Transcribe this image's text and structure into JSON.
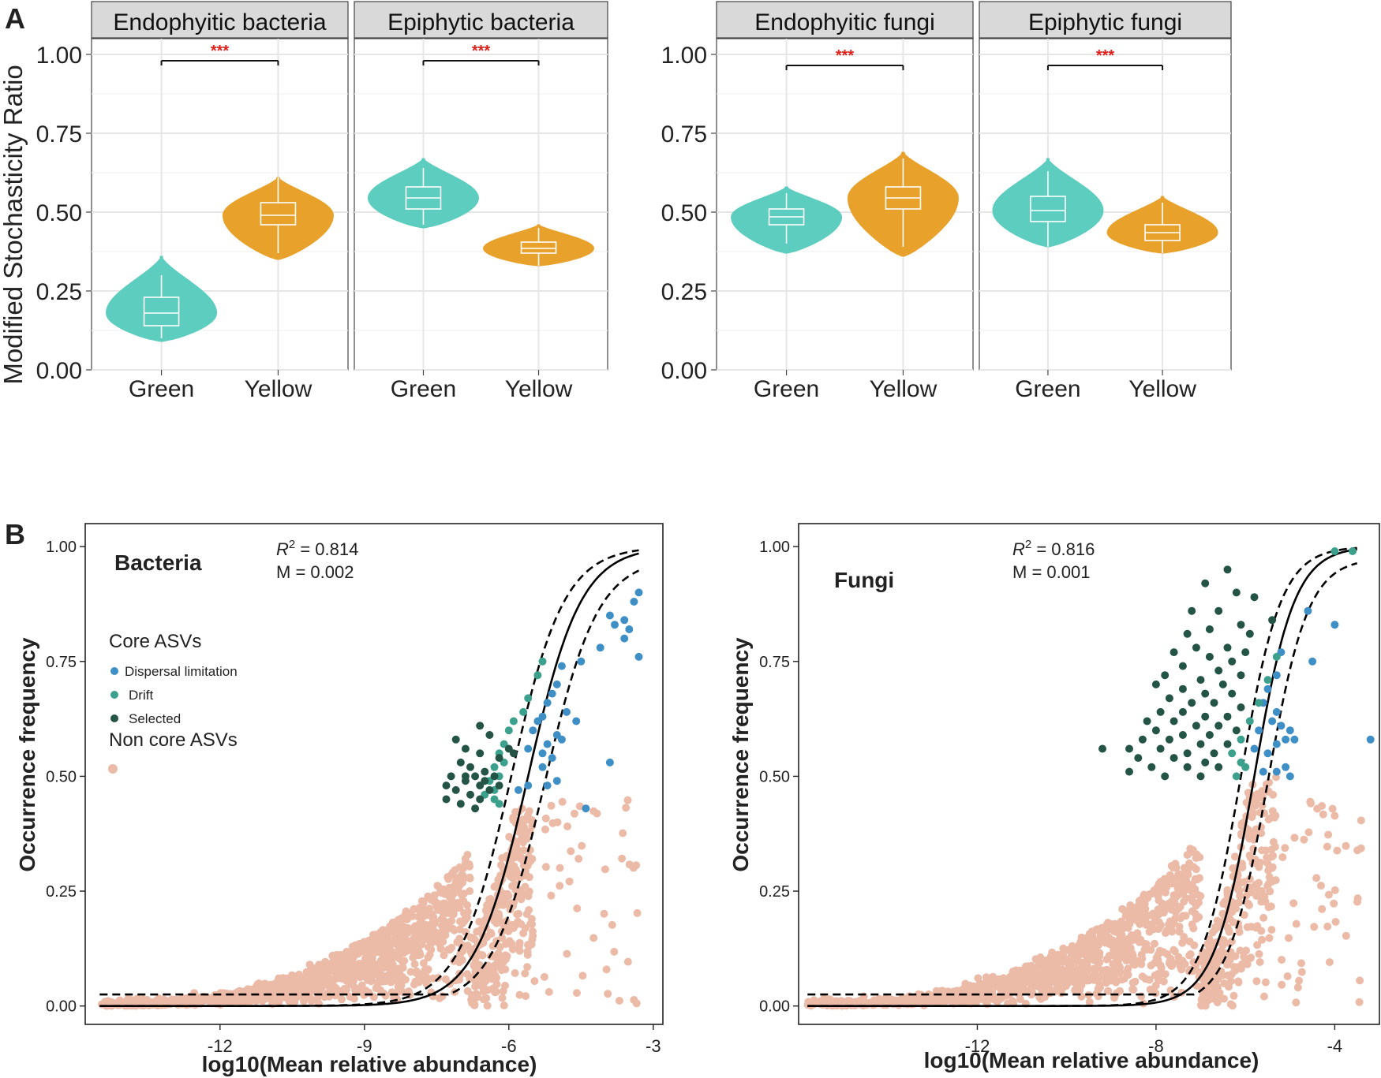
{
  "figure": {
    "panel_a_label": "A",
    "panel_b_label": "B",
    "colors": {
      "green": "#5ccdbe",
      "yellow": "#e8a22c",
      "strip": "#d9d9d9",
      "nonCore": "#ebbba8",
      "dispersal": "#3f8fc7",
      "drift": "#3ba08c",
      "selected": "#245446",
      "sig": "#e0201b"
    }
  },
  "chart_data": [
    {
      "type": "violin",
      "panel": "A",
      "ylabel": "Modified Stochasticity Ratio",
      "ylim": [
        0,
        1.05
      ],
      "yticks": [
        0.0,
        0.25,
        0.5,
        0.75,
        1.0
      ],
      "ytick_labels": [
        "0.00",
        "0.25",
        "0.50",
        "0.75",
        "1.00"
      ],
      "categories": [
        "Green",
        "Yellow"
      ],
      "significance": "***",
      "facets": [
        {
          "title": "Endophyitic bacteria",
          "groups": [
            {
              "category": "Green",
              "min": 0.09,
              "max": 0.36,
              "q1": 0.14,
              "median": 0.18,
              "q3": 0.23,
              "whisker_low": 0.1,
              "whisker_high": 0.3
            },
            {
              "category": "Yellow",
              "min": 0.35,
              "max": 0.61,
              "q1": 0.46,
              "median": 0.49,
              "q3": 0.53,
              "whisker_low": 0.37,
              "whisker_high": 0.61
            }
          ],
          "bracket_y": 0.98
        },
        {
          "title": "Epiphytic bacteria",
          "groups": [
            {
              "category": "Green",
              "min": 0.45,
              "max": 0.67,
              "q1": 0.51,
              "median": 0.545,
              "q3": 0.58,
              "whisker_low": 0.46,
              "whisker_high": 0.64
            },
            {
              "category": "Yellow",
              "min": 0.33,
              "max": 0.46,
              "q1": 0.37,
              "median": 0.385,
              "q3": 0.405,
              "whisker_low": 0.33,
              "whisker_high": 0.45
            }
          ],
          "bracket_y": 0.98
        },
        {
          "title": "Endophyitic fungi",
          "groups": [
            {
              "category": "Green",
              "min": 0.37,
              "max": 0.58,
              "q1": 0.46,
              "median": 0.485,
              "q3": 0.51,
              "whisker_low": 0.4,
              "whisker_high": 0.56
            },
            {
              "category": "Yellow",
              "min": 0.36,
              "max": 0.69,
              "q1": 0.51,
              "median": 0.545,
              "q3": 0.58,
              "whisker_low": 0.39,
              "whisker_high": 0.67
            }
          ],
          "bracket_y": 0.965
        },
        {
          "title": "Epiphytic fungi",
          "groups": [
            {
              "category": "Green",
              "min": 0.39,
              "max": 0.67,
              "q1": 0.47,
              "median": 0.505,
              "q3": 0.55,
              "whisker_low": 0.39,
              "whisker_high": 0.63
            },
            {
              "category": "Yellow",
              "min": 0.37,
              "max": 0.55,
              "q1": 0.41,
              "median": 0.435,
              "q3": 0.46,
              "whisker_low": 0.37,
              "whisker_high": 0.53
            }
          ],
          "bracket_y": 0.965
        }
      ]
    },
    {
      "type": "scatter",
      "panel": "B",
      "subtitle": "Bacteria",
      "r2_label": "R",
      "r2_exponent": "2",
      "r2_value": " = 0.814",
      "m_text": "M = 0.002",
      "xlabel": "log10(Mean relative abundance)",
      "ylabel": "Occurrence frequency",
      "xlim": [
        -14.8,
        -2.8
      ],
      "ylim": [
        -0.04,
        1.05
      ],
      "xticks": [
        -12,
        -9,
        -6,
        -3
      ],
      "xtick_labels": [
        "-12",
        "-9",
        "-6",
        "-3"
      ],
      "yticks": [
        0.0,
        0.25,
        0.5,
        0.75,
        1.0
      ],
      "ytick_labels": [
        "0.00",
        "0.25",
        "0.50",
        "0.75",
        "1.00"
      ],
      "fit": {
        "center": -5.6,
        "width": 0.55,
        "band": 0.35,
        "xmin": -14.5,
        "xmax": -3.3
      },
      "legend": {
        "title": "Core ASVs",
        "items": [
          "Dispersal limitation",
          "Drift",
          "Selected"
        ],
        "non_core": "Non core ASVs"
      },
      "non_core_cloud": {
        "count": 1500,
        "xmin": -14.5,
        "xmax": -5.5,
        "ymax": 0.43,
        "extra_right": 45
      },
      "series": [
        {
          "name": "Dispersal limitation",
          "points": [
            [
              -3.3,
              0.9
            ],
            [
              -3.4,
              0.88
            ],
            [
              -3.6,
              0.84
            ],
            [
              -3.9,
              0.85
            ],
            [
              -3.8,
              0.83
            ],
            [
              -3.5,
              0.82
            ],
            [
              -3.6,
              0.8
            ],
            [
              -3.3,
              0.76
            ],
            [
              -4.1,
              0.78
            ],
            [
              -4.5,
              0.75
            ],
            [
              -4.9,
              0.74
            ],
            [
              -5.0,
              0.7
            ],
            [
              -5.1,
              0.68
            ],
            [
              -5.2,
              0.66
            ],
            [
              -4.8,
              0.64
            ],
            [
              -5.3,
              0.63
            ],
            [
              -5.4,
              0.62
            ],
            [
              -4.6,
              0.62
            ],
            [
              -5.5,
              0.6
            ],
            [
              -5.0,
              0.59
            ],
            [
              -4.9,
              0.58
            ],
            [
              -5.2,
              0.57
            ],
            [
              -5.6,
              0.56
            ],
            [
              -5.3,
              0.55
            ],
            [
              -5.1,
              0.54
            ],
            [
              -5.3,
              0.52
            ],
            [
              -5.0,
              0.49
            ],
            [
              -5.2,
              0.48
            ],
            [
              -5.6,
              0.48
            ],
            [
              -5.8,
              0.47
            ],
            [
              -4.4,
              0.43
            ],
            [
              -3.9,
              0.53
            ]
          ]
        },
        {
          "name": "Drift",
          "points": [
            [
              -5.3,
              0.75
            ],
            [
              -5.4,
              0.72
            ],
            [
              -5.6,
              0.67
            ],
            [
              -5.7,
              0.64
            ],
            [
              -5.9,
              0.62
            ],
            [
              -6.0,
              0.6
            ],
            [
              -6.1,
              0.57
            ],
            [
              -6.2,
              0.55
            ],
            [
              -6.1,
              0.53
            ],
            [
              -6.3,
              0.52
            ],
            [
              -6.2,
              0.5
            ],
            [
              -6.4,
              0.49
            ],
            [
              -6.3,
              0.47
            ],
            [
              -6.5,
              0.46
            ],
            [
              -6.3,
              0.45
            ],
            [
              -6.2,
              0.44
            ]
          ]
        },
        {
          "name": "Selected",
          "points": [
            [
              -7.1,
              0.58
            ],
            [
              -6.6,
              0.61
            ],
            [
              -6.4,
              0.59
            ],
            [
              -6.9,
              0.56
            ],
            [
              -6.6,
              0.55
            ],
            [
              -7.0,
              0.53
            ],
            [
              -6.8,
              0.52
            ],
            [
              -6.5,
              0.51
            ],
            [
              -6.2,
              0.54
            ],
            [
              -6.0,
              0.56
            ],
            [
              -7.2,
              0.5
            ],
            [
              -6.9,
              0.49
            ],
            [
              -6.6,
              0.48
            ],
            [
              -6.4,
              0.47
            ],
            [
              -7.1,
              0.47
            ],
            [
              -6.8,
              0.46
            ],
            [
              -6.6,
              0.45
            ],
            [
              -7.3,
              0.45
            ],
            [
              -7.0,
              0.44
            ],
            [
              -6.7,
              0.43
            ],
            [
              -6.5,
              0.49
            ],
            [
              -6.3,
              0.5
            ],
            [
              -6.2,
              0.48
            ],
            [
              -5.9,
              0.55
            ],
            [
              -7.3,
              0.48
            ],
            [
              -6.9,
              0.5
            ],
            [
              -6.7,
              0.5
            ]
          ]
        }
      ]
    },
    {
      "type": "scatter",
      "panel": "B",
      "subtitle": "Fungi",
      "r2_label": "R",
      "r2_exponent": "2",
      "r2_value": " = 0.816",
      "m_text": "M = 0.001",
      "xlabel": "log10(Mean relative abundance)",
      "ylabel": "Occurrence frequency",
      "xlim": [
        -16,
        -3
      ],
      "ylim": [
        -0.04,
        1.05
      ],
      "xticks": [
        -12,
        -8,
        -4
      ],
      "xtick_labels": [
        "-12",
        "-8",
        "-4"
      ],
      "yticks": [
        0.0,
        0.25,
        0.5,
        0.75,
        1.0
      ],
      "ytick_labels": [
        "0.00",
        "0.25",
        "0.50",
        "0.75",
        "1.00"
      ],
      "fit": {
        "center": -5.8,
        "width": 0.45,
        "band": 0.3,
        "xmin": -15.8,
        "xmax": -3.5
      },
      "non_core_cloud": {
        "count": 1500,
        "xmin": -15.8,
        "xmax": -5.3,
        "ymax": 0.5,
        "extra_right": 45
      },
      "series": [
        {
          "name": "Dispersal limitation",
          "points": [
            [
              -3.2,
              0.58
            ],
            [
              -4.0,
              0.83
            ],
            [
              -4.6,
              0.86
            ],
            [
              -4.5,
              0.75
            ],
            [
              -5.2,
              0.77
            ],
            [
              -5.3,
              0.72
            ],
            [
              -5.5,
              0.69
            ],
            [
              -5.6,
              0.66
            ],
            [
              -5.3,
              0.64
            ],
            [
              -5.4,
              0.62
            ],
            [
              -5.2,
              0.61
            ],
            [
              -5.0,
              0.6
            ],
            [
              -5.7,
              0.6
            ],
            [
              -5.1,
              0.58
            ],
            [
              -4.9,
              0.58
            ],
            [
              -5.3,
              0.57
            ],
            [
              -5.5,
              0.55
            ],
            [
              -5.8,
              0.56
            ],
            [
              -5.1,
              0.52
            ],
            [
              -5.0,
              0.5
            ],
            [
              -5.3,
              0.51
            ],
            [
              -5.6,
              0.51
            ]
          ]
        },
        {
          "name": "Drift",
          "points": [
            [
              -3.6,
              0.99
            ],
            [
              -4.0,
              0.99
            ],
            [
              -5.3,
              0.76
            ],
            [
              -5.5,
              0.71
            ],
            [
              -5.7,
              0.66
            ],
            [
              -5.9,
              0.62
            ],
            [
              -6.1,
              0.58
            ],
            [
              -6.3,
              0.55
            ],
            [
              -6.1,
              0.53
            ],
            [
              -6.0,
              0.52
            ],
            [
              -6.2,
              0.5
            ]
          ]
        },
        {
          "name": "Selected",
          "points": [
            [
              -6.4,
              0.95
            ],
            [
              -6.9,
              0.92
            ],
            [
              -6.2,
              0.9
            ],
            [
              -5.8,
              0.89
            ],
            [
              -7.2,
              0.86
            ],
            [
              -6.6,
              0.86
            ],
            [
              -6.1,
              0.83
            ],
            [
              -5.4,
              0.84
            ],
            [
              -7.3,
              0.81
            ],
            [
              -6.8,
              0.82
            ],
            [
              -5.9,
              0.81
            ],
            [
              -7.1,
              0.78
            ],
            [
              -6.4,
              0.78
            ],
            [
              -6.0,
              0.77
            ],
            [
              -7.6,
              0.77
            ],
            [
              -6.8,
              0.76
            ],
            [
              -6.3,
              0.75
            ],
            [
              -7.4,
              0.74
            ],
            [
              -6.6,
              0.73
            ],
            [
              -6.1,
              0.72
            ],
            [
              -7.8,
              0.72
            ],
            [
              -7.0,
              0.71
            ],
            [
              -6.5,
              0.7
            ],
            [
              -8.0,
              0.7
            ],
            [
              -7.4,
              0.69
            ],
            [
              -6.9,
              0.68
            ],
            [
              -6.3,
              0.68
            ],
            [
              -7.7,
              0.67
            ],
            [
              -7.2,
              0.66
            ],
            [
              -6.7,
              0.66
            ],
            [
              -6.1,
              0.65
            ],
            [
              -7.9,
              0.64
            ],
            [
              -7.4,
              0.64
            ],
            [
              -6.9,
              0.63
            ],
            [
              -6.4,
              0.63
            ],
            [
              -8.2,
              0.62
            ],
            [
              -7.6,
              0.62
            ],
            [
              -7.1,
              0.61
            ],
            [
              -6.6,
              0.61
            ],
            [
              -6.2,
              0.6
            ],
            [
              -8.0,
              0.6
            ],
            [
              -7.4,
              0.59
            ],
            [
              -6.8,
              0.59
            ],
            [
              -9.2,
              0.56
            ],
            [
              -8.3,
              0.58
            ],
            [
              -7.7,
              0.58
            ],
            [
              -7.0,
              0.57
            ],
            [
              -6.4,
              0.57
            ],
            [
              -8.6,
              0.56
            ],
            [
              -7.9,
              0.56
            ],
            [
              -7.3,
              0.55
            ],
            [
              -6.7,
              0.55
            ],
            [
              -8.4,
              0.54
            ],
            [
              -7.6,
              0.54
            ],
            [
              -6.9,
              0.53
            ],
            [
              -8.1,
              0.52
            ],
            [
              -7.3,
              0.52
            ],
            [
              -6.6,
              0.52
            ],
            [
              -8.6,
              0.51
            ],
            [
              -7.8,
              0.5
            ],
            [
              -7.0,
              0.5
            ]
          ]
        }
      ]
    }
  ]
}
